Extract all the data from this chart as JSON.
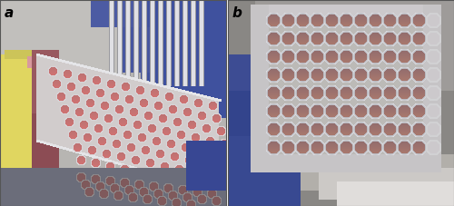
{
  "label_a": "a",
  "label_b": "b",
  "label_fontsize": 11,
  "label_fontweight": "bold",
  "label_fontstyle": "italic",
  "label_color": "black",
  "fig_width": 5.0,
  "fig_height": 2.27,
  "background_color": "#ffffff",
  "border_color": "#555555",
  "border_linewidth": 0.8
}
